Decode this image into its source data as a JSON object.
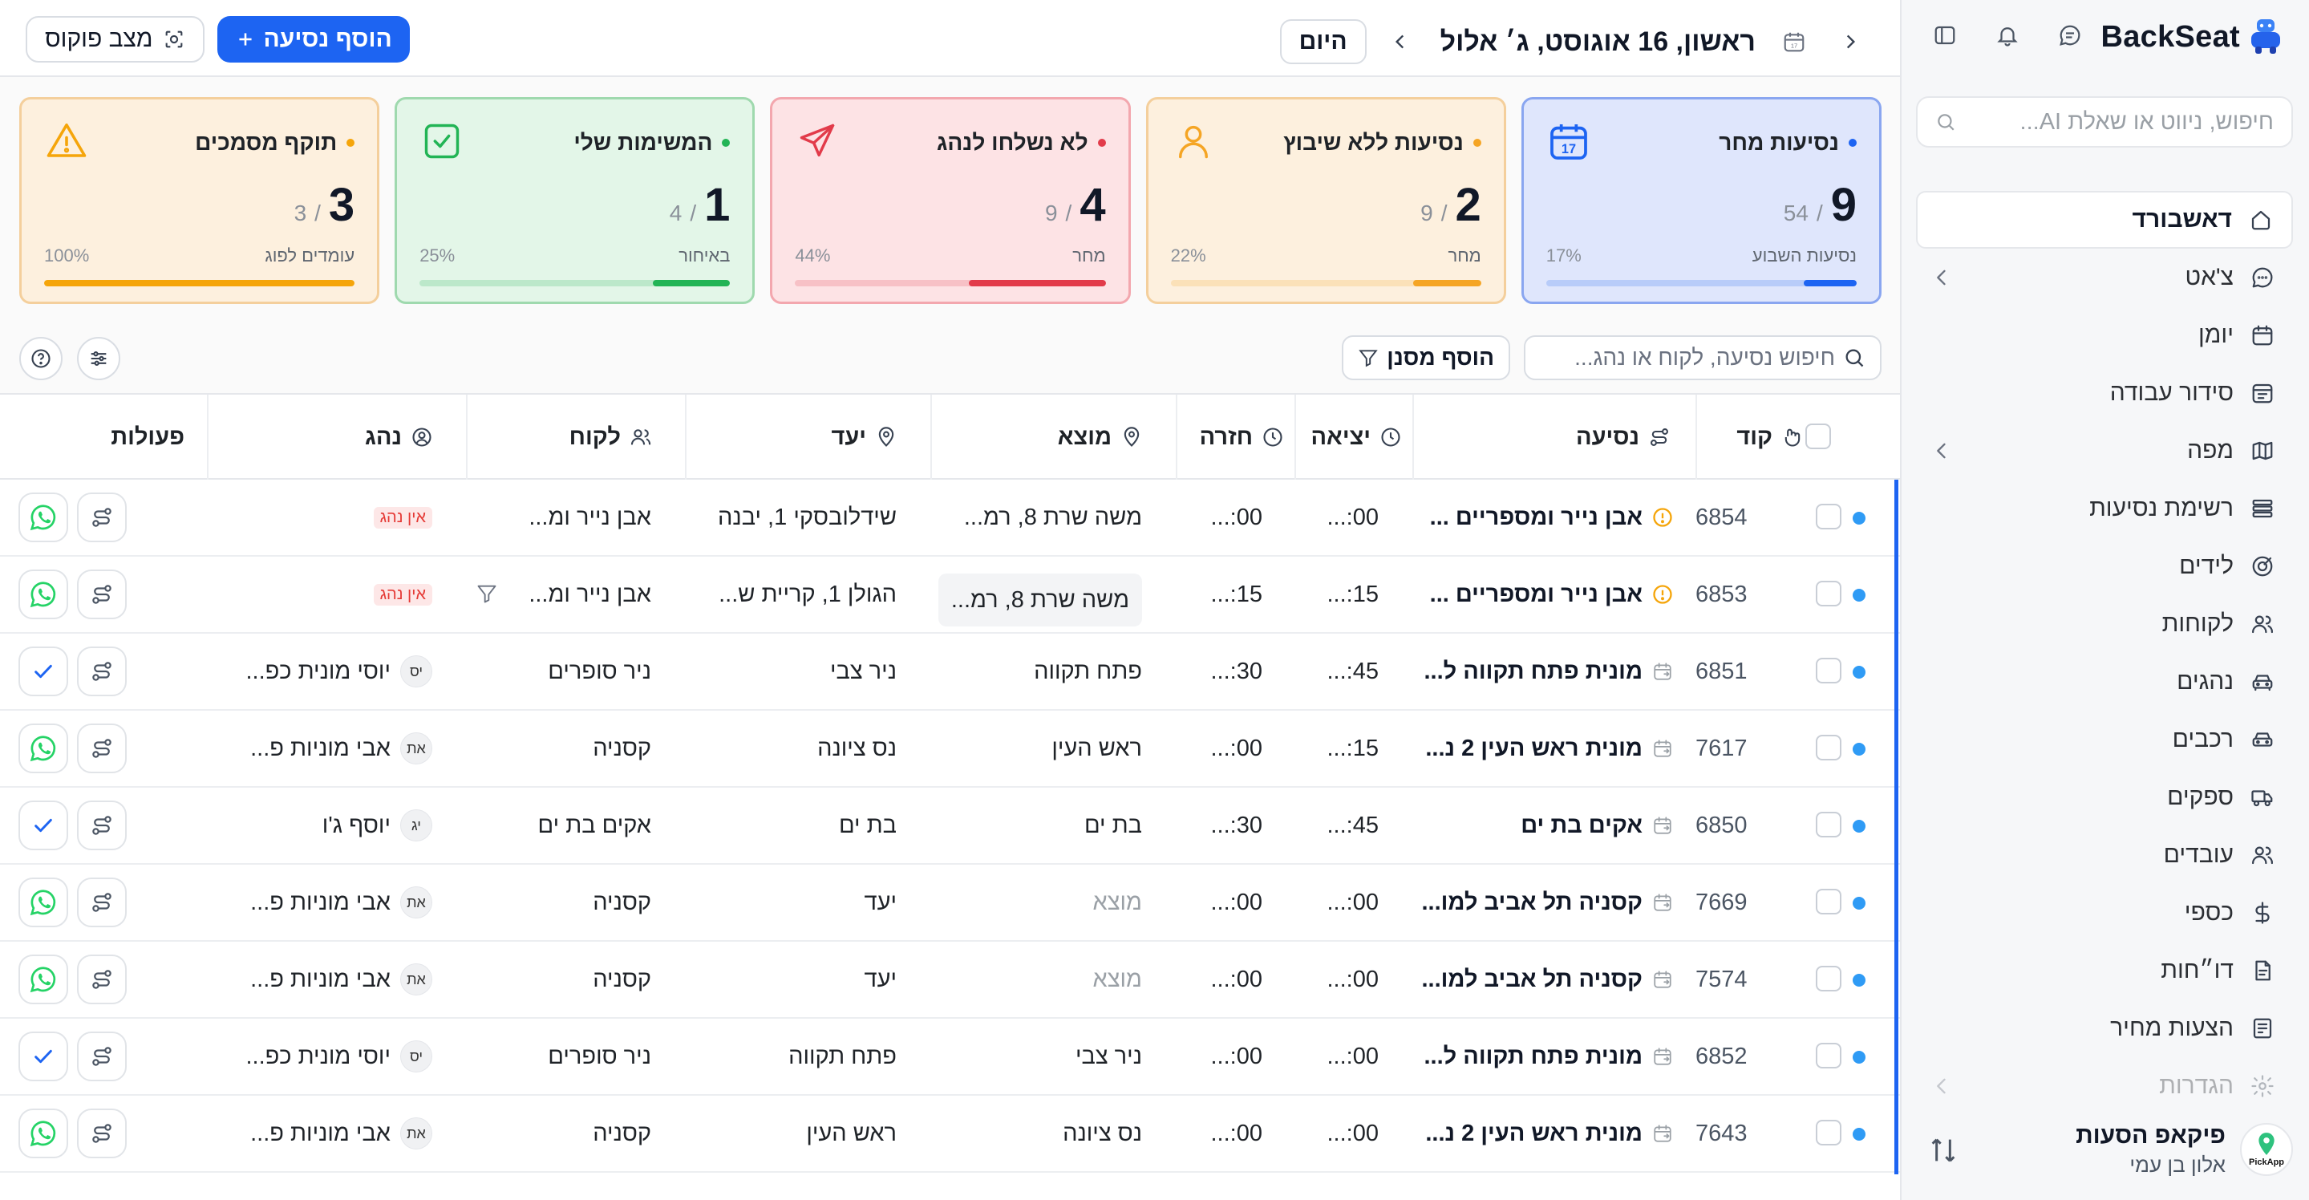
{
  "brand": {
    "name": "BackSeat"
  },
  "sidebar": {
    "search_placeholder": "חיפוש, ניווט או שאלת AI...",
    "items": [
      {
        "label": "דאשבורד",
        "icon": "home-icon",
        "active": true
      },
      {
        "label": "צ'אט",
        "icon": "chat-icon",
        "chevron": true
      },
      {
        "label": "יומן",
        "icon": "calendar-icon"
      },
      {
        "label": "סידור עבודה",
        "icon": "schedule-icon"
      },
      {
        "label": "מפה",
        "icon": "map-icon",
        "chevron": true
      },
      {
        "label": "רשימת נסיעות",
        "icon": "list-icon"
      },
      {
        "label": "לידים",
        "icon": "leads-icon"
      },
      {
        "label": "לקוחות",
        "icon": "customers-icon"
      },
      {
        "label": "נהגים",
        "icon": "drivers-icon"
      },
      {
        "label": "רכבים",
        "icon": "car-icon"
      },
      {
        "label": "ספקים",
        "icon": "truck-icon"
      },
      {
        "label": "עובדים",
        "icon": "employees-icon"
      },
      {
        "label": "כספי",
        "icon": "dollar-icon"
      },
      {
        "label": "דו״חות",
        "icon": "reports-icon"
      },
      {
        "label": "הצעות מחיר",
        "icon": "quote-icon"
      },
      {
        "label": "הגדרות",
        "icon": "settings-icon",
        "chevron": true,
        "faded": true
      }
    ],
    "footer": {
      "logo_label": "PickApp",
      "name": "פיקאפ הסעות",
      "user": "אלון בן עמי"
    }
  },
  "topbar": {
    "date": "ראשון, 16 אוגוסט, ג׳ אלול",
    "today": "היום",
    "focus": "מצב פוקוס",
    "add_trip": "הוסף נסיעה"
  },
  "cards": [
    {
      "title": "נסיעות מחר",
      "value": "9",
      "total": "54",
      "sub": "נסיעות השבוע",
      "pct": "17%",
      "fraction": 0.17,
      "icon": "calendar-17-icon",
      "icon_text": "17",
      "theme": "blue"
    },
    {
      "title": "נסיעות ללא שיבוץ",
      "value": "2",
      "total": "9",
      "sub": "מחר",
      "pct": "22%",
      "fraction": 0.22,
      "icon": "user-icon",
      "theme": "orange"
    },
    {
      "title": "לא נשלחו לנהג",
      "value": "4",
      "total": "9",
      "sub": "מחר",
      "pct": "44%",
      "fraction": 0.44,
      "icon": "send-icon",
      "theme": "red"
    },
    {
      "title": "המשימות שלי",
      "value": "1",
      "total": "4",
      "sub": "באיחור",
      "pct": "25%",
      "fraction": 0.25,
      "icon": "check-square-icon",
      "theme": "green"
    },
    {
      "title": "תוקף מסמכים",
      "value": "3",
      "total": "3",
      "sub": "עומדים לפוג",
      "pct": "100%",
      "fraction": 1.0,
      "icon": "warning-icon",
      "theme": "amber"
    }
  ],
  "filters": {
    "search_placeholder": "חיפוש נסיעה, לקוח או נהג...",
    "add_filter": "הוסף מסנן"
  },
  "table": {
    "headers": {
      "code": "קוד",
      "trip": "נסיעה",
      "depart": "יציאה",
      "return": "חזרה",
      "origin": "מוצא",
      "dest": "יעד",
      "customer": "לקוח",
      "driver": "נהג",
      "actions": "פעולות"
    },
    "rows": [
      {
        "code": "6854",
        "trip": "אבן נייר ומספריים ...",
        "warn": true,
        "depart": "00:...",
        "ret": "00:...",
        "origin": "משה שרת 8, רמ...",
        "dest": "שידלובסקי 1, יבנה",
        "customer": "אבן נייר ומ...",
        "driver": "",
        "initials": "",
        "no_driver": "אין נהג",
        "action": "whatsapp"
      },
      {
        "code": "6853",
        "trip": "אבן נייר ומספריים ...",
        "warn": true,
        "depart": "15:...",
        "ret": "15:...",
        "origin": "משה שרת 8, רמ...",
        "dest": "הגולן 1, קריית ש...",
        "customer": "אבן נייר ומ...",
        "driver": "",
        "initials": "",
        "no_driver": "אין נהג",
        "action": "whatsapp",
        "highlight": true,
        "filter_icon": true
      },
      {
        "code": "6851",
        "trip": "מונית פתח תקווה ל...",
        "depart": "45:...",
        "ret": "30:...",
        "origin": "פתח תקווה",
        "dest": "ניר צבי",
        "customer": "ניר סופרים",
        "driver": "יוסי מונית כפ...",
        "initials": "יס",
        "action": "check"
      },
      {
        "code": "7617",
        "trip": "מונית ראש העין 2 נ...",
        "depart": "15:...",
        "ret": "00:...",
        "origin": "ראש העין",
        "dest": "נס ציונה",
        "customer": "קסניה",
        "driver": "אבי מוניות פ...",
        "initials": "את",
        "action": "whatsapp"
      },
      {
        "code": "6850",
        "trip": "אקים בת ים",
        "depart": "45:...",
        "ret": "30:...",
        "origin": "בת ים",
        "dest": "בת ים",
        "customer": "אקים בת ים",
        "driver": "יוסף ג'ו",
        "initials": "יג",
        "action": "check"
      },
      {
        "code": "7669",
        "trip": "קסניה תל אביב למו...",
        "depart": "00:...",
        "ret": "00:...",
        "origin": "מוצא",
        "dest": "יעד",
        "placeholder": true,
        "customer": "קסניה",
        "driver": "אבי מוניות פ...",
        "initials": "את",
        "action": "whatsapp"
      },
      {
        "code": "7574",
        "trip": "קסניה תל אביב למו...",
        "depart": "00:...",
        "ret": "00:...",
        "origin": "מוצא",
        "dest": "יעד",
        "placeholder": true,
        "customer": "קסניה",
        "driver": "אבי מוניות פ...",
        "initials": "את",
        "action": "whatsapp"
      },
      {
        "code": "6852",
        "trip": "מונית פתח תקווה ל...",
        "depart": "00:...",
        "ret": "00:...",
        "origin": "ניר צבי",
        "dest": "פתח תקווה",
        "customer": "ניר סופרים",
        "driver": "יוסי מונית כפ...",
        "initials": "יס",
        "action": "check"
      },
      {
        "code": "7643",
        "trip": "מונית ראש העין 2 נ...",
        "depart": "00:...",
        "ret": "00:...",
        "origin": "נס ציונה",
        "dest": "ראש העין",
        "customer": "קסניה",
        "driver": "אבי מוניות פ...",
        "initials": "את",
        "action": "whatsapp"
      }
    ]
  },
  "colors": {
    "accent": "#1d64f2",
    "blue_card_bg": "#dfe6fc",
    "blue_card_border": "#8aa6f0",
    "blue_bar": "#1d64f2",
    "orange_card_bg": "#fdf0de",
    "orange_card_border": "#f4cf9c",
    "orange_bar": "#f5a524",
    "red_card_bg": "#fde3e5",
    "red_card_border": "#f3a7ae",
    "red_bar": "#e23b4a",
    "green_card_bg": "#e3f6e8",
    "green_card_border": "#9fd9ae",
    "green_bar": "#22b455",
    "amber_card_bg": "#fdf0de",
    "amber_card_border": "#f4cf9c",
    "amber_bar": "#f5a50a",
    "whatsapp": "#25d366",
    "row_dot": "#2f9bf5"
  }
}
